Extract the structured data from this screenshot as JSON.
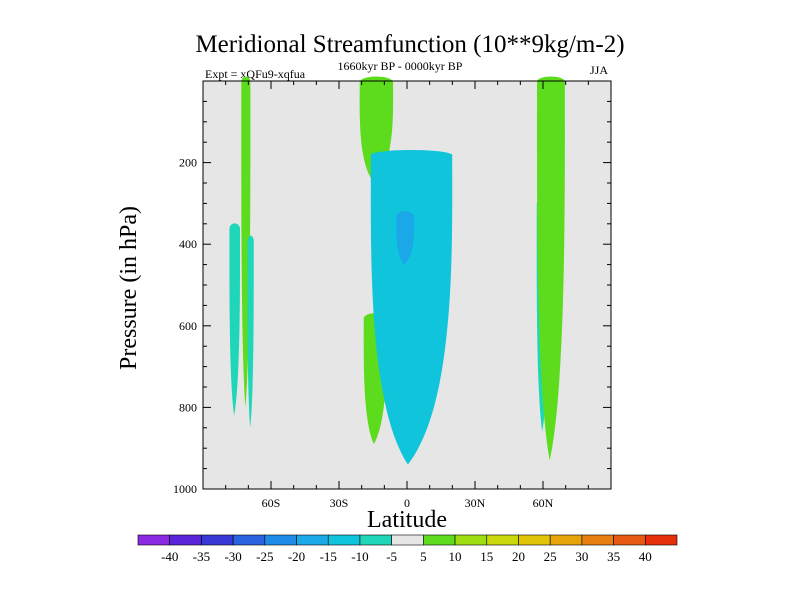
{
  "chart_data": {
    "type": "contour",
    "title": "Meridional Streamfunction (10**9kg/m-2)",
    "subtitle_left": "Expt = xQFu9-xqfua",
    "subtitle_center": "1660kyr BP - 0000kyr BP",
    "subtitle_right": "JJA",
    "xlabel": "Latitude",
    "ylabel": "Pressure (in hPa)",
    "xlim": [
      -90,
      90
    ],
    "ylim": [
      1000,
      0
    ],
    "x_ticks": [
      {
        "value": -60,
        "label": "60S"
      },
      {
        "value": -30,
        "label": "30S"
      },
      {
        "value": 0,
        "label": "0"
      },
      {
        "value": 30,
        "label": "30N"
      },
      {
        "value": 60,
        "label": "60N"
      }
    ],
    "y_ticks": [
      {
        "value": 200,
        "label": "200"
      },
      {
        "value": 400,
        "label": "400"
      },
      {
        "value": 600,
        "label": "600"
      },
      {
        "value": 800,
        "label": "800"
      },
      {
        "value": 1000,
        "label": "1000"
      }
    ],
    "background_color": "#e6e6e6",
    "colorbar": {
      "labels": [
        "-40",
        "-35",
        "-30",
        "-25",
        "-20",
        "-15",
        "-10",
        "-5",
        "5",
        "10",
        "15",
        "20",
        "25",
        "30",
        "35",
        "40"
      ],
      "colors": [
        "#8a2be2",
        "#5a25d8",
        "#3838d6",
        "#2a62e0",
        "#1e8ce6",
        "#1aa8e8",
        "#10c4dc",
        "#1fd6b8",
        "#e6e6e6",
        "#5cdc1c",
        "#9ede10",
        "#c8d80c",
        "#e0c408",
        "#e6a40a",
        "#e67e10",
        "#e65a14",
        "#e6300c"
      ]
    },
    "regions": [
      {
        "name": "sh-polar-thin-cell",
        "value": 7,
        "color": "#5cdc1c",
        "lat": [
          -72,
          -71.3,
          -70.8,
          -70.2
        ],
        "p": [
          0,
          80,
          500,
          800
        ]
      },
      {
        "name": "sh-polar-weak-neg-left",
        "value": -7,
        "color": "#1fd6b8",
        "lat": [
          -77,
          -75.5,
          -75
        ],
        "p": [
          360,
          580,
          820
        ]
      },
      {
        "name": "sh-polar-weak-neg-right",
        "value": -7,
        "color": "#1fd6b8",
        "lat": [
          -69.5,
          -68.5
        ],
        "p": [
          390,
          850
        ]
      },
      {
        "name": "tropical-positive-upper",
        "value": 7,
        "color": "#5cdc1c",
        "lat": [
          -16,
          -11,
          -13
        ],
        "p": [
          0,
          100,
          250
        ]
      },
      {
        "name": "tropical-positive-lower",
        "value": 7,
        "color": "#5cdc1c",
        "lat": [
          -16,
          -12
        ],
        "p": [
          580,
          890
        ]
      },
      {
        "name": "tropical-negative-cell",
        "value": -10,
        "color": "#10c4dc",
        "lat": [
          -8,
          0,
          12
        ],
        "p": [
          180,
          400,
          940
        ]
      },
      {
        "name": "tropical-negative-core",
        "value": -17,
        "color": "#1aa8e8",
        "lat": [
          -2,
          0.5
        ],
        "p": [
          330,
          450
        ]
      },
      {
        "name": "nh-subtropical-negative",
        "value": -7,
        "color": "#1fd6b8",
        "lat": [
          59,
          61
        ],
        "p": [
          300,
          860
        ]
      },
      {
        "name": "nh-subtropical-positive",
        "value": 7,
        "color": "#5cdc1c",
        "lat": [
          60,
          64,
          67
        ],
        "p": [
          0,
          420,
          930
        ]
      }
    ]
  }
}
